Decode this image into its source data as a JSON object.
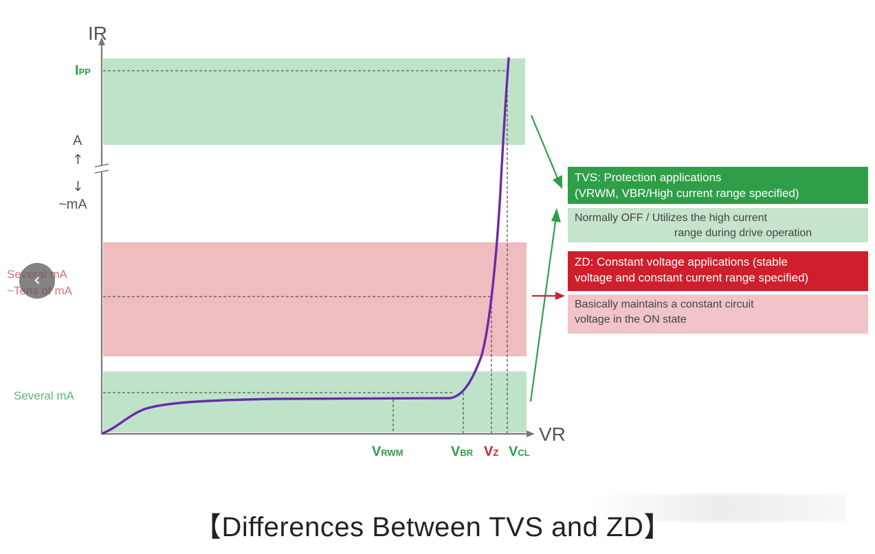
{
  "axes": {
    "y_label": "IR",
    "x_label": "VR"
  },
  "y_ticks": {
    "ipp": {
      "main": "I",
      "sub": "PP"
    },
    "a": "A",
    "up_arrow": "↑",
    "down_arrow": "↓",
    "ma": "~mA",
    "several_tens_line1": "Several mA",
    "several_tens_line2": "~Tens of mA",
    "several_ma": "Several mA"
  },
  "x_ticks": {
    "vrwm": {
      "main": "V",
      "sub": "RWM"
    },
    "vbr": {
      "main": "V",
      "sub": "BR"
    },
    "vz": {
      "main": "V",
      "sub": "Z"
    },
    "vcl": {
      "main": "V",
      "sub": "CL"
    }
  },
  "boxes": {
    "tvs_title_line1": "TVS: Protection applications",
    "tvs_title_line2": "(VRWM, VBR/High current range specified)",
    "tvs_desc_line1": "Normally OFF / Utilizes the high current",
    "tvs_desc_line2": "range during drive operation",
    "zd_title_line1": "ZD: Constant voltage applications (stable",
    "zd_title_line2": "voltage and constant current range specified)",
    "zd_desc_line1": "Basically maintains a constant circuit",
    "zd_desc_line2": "voltage in the ON state"
  },
  "caption": "【Differences Between TVS and ZD】",
  "nav": {
    "prev_glyph": "‹"
  },
  "colors": {
    "green_band": "#bfe3c9",
    "red_band": "#efbcc0",
    "curve": "#6a2aa8",
    "green_text": "#2f9e48",
    "red_text": "#d01f2c",
    "axis": "#777777"
  }
}
